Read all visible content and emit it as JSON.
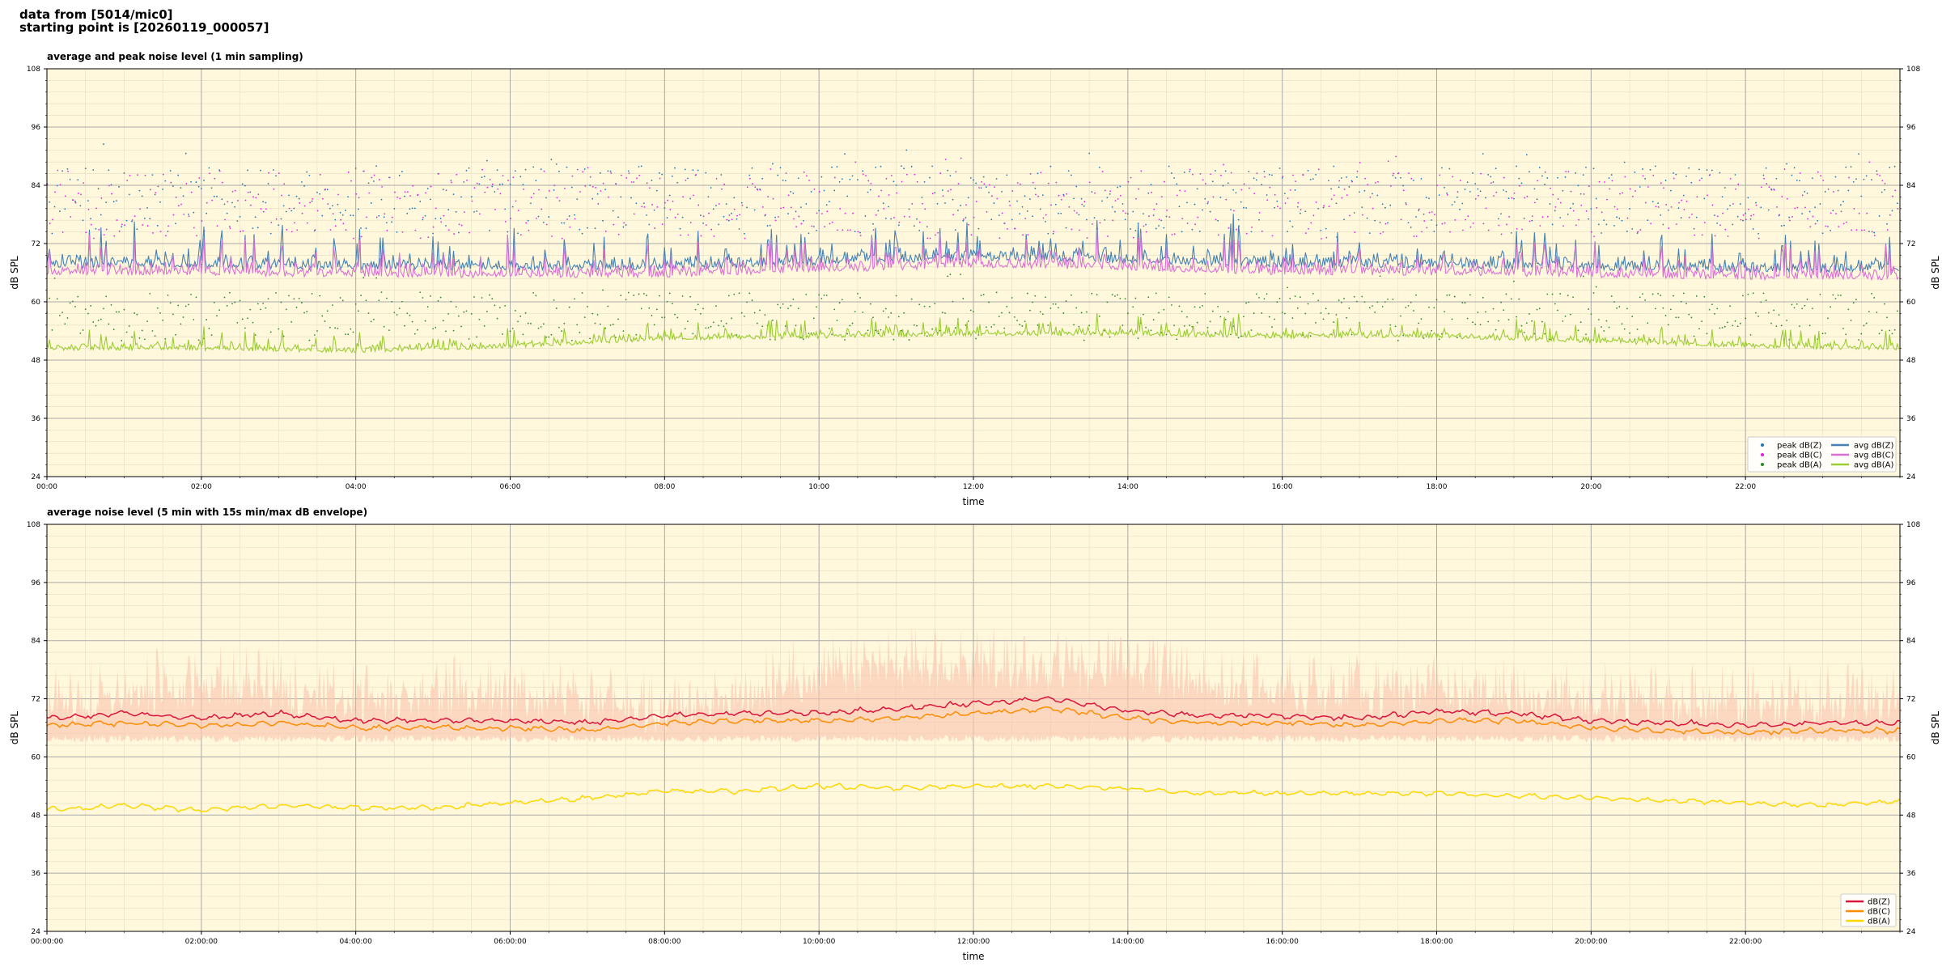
{
  "header": {
    "line1": "data from [5014/mic0]",
    "line2": "starting point is [20260119_000057]"
  },
  "colors": {
    "background": "#fff8dc",
    "peak_z": "#1f77b4",
    "peak_c": "#e023e0",
    "peak_a": "#2a8a2a",
    "avg_z": "#4682b4",
    "avg_c": "#da70d6",
    "avg_a": "#9acd32",
    "env": "#fbc6b0",
    "db_z": "#dc143c",
    "db_c": "#ff8c00",
    "db_a": "#ffd700"
  },
  "chart_data": [
    {
      "type": "line",
      "title": "average and peak noise level (1 min sampling)",
      "xlabel": "time",
      "ylabel": "dB SPL",
      "xlim_hours": [
        0,
        24
      ],
      "ylim": [
        24,
        108
      ],
      "yticks": [
        24,
        36,
        48,
        60,
        72,
        84,
        96,
        108
      ],
      "xtick_labels": [
        "00:00",
        "02:00",
        "04:00",
        "06:00",
        "08:00",
        "10:00",
        "12:00",
        "14:00",
        "16:00",
        "18:00",
        "20:00",
        "22:00"
      ],
      "grid": true,
      "legend_position": "lower-right",
      "legend": [
        "peak dB(Z)",
        "peak dB(C)",
        "peak dB(A)",
        "avg dB(Z)",
        "avg dB(C)",
        "avg dB(A)"
      ],
      "series_summary": [
        {
          "name": "avg dB(Z)",
          "typical_level": 68,
          "range": [
            64,
            80
          ]
        },
        {
          "name": "avg dB(C)",
          "typical_level": 66.5,
          "range": [
            63,
            78
          ]
        },
        {
          "name": "avg dB(A)",
          "typical_level": 51,
          "range": [
            48,
            61
          ]
        },
        {
          "name": "peak dB(Z)",
          "typical_level": 80,
          "range": [
            60,
            93
          ]
        },
        {
          "name": "peak dB(C)",
          "typical_level": 79,
          "range": [
            60,
            92
          ]
        },
        {
          "name": "peak dB(A)",
          "typical_level": 58,
          "range": [
            50,
            73
          ]
        }
      ]
    },
    {
      "type": "line",
      "title": "average noise level (5 min with 15s min/max dB envelope)",
      "xlabel": "time",
      "ylabel": "dB SPL",
      "xlim_hours": [
        0,
        24
      ],
      "ylim": [
        24,
        108
      ],
      "yticks": [
        24,
        36,
        48,
        60,
        72,
        84,
        96,
        108
      ],
      "xtick_labels": [
        "00:00:00",
        "02:00:00",
        "04:00:00",
        "06:00:00",
        "08:00:00",
        "10:00:00",
        "12:00:00",
        "14:00:00",
        "16:00:00",
        "18:00:00",
        "20:00:00",
        "22:00:00"
      ],
      "grid": true,
      "legend_position": "lower-right",
      "legend": [
        "dB(Z)",
        "dB(C)",
        "dB(A)"
      ],
      "series": [
        {
          "name": "dB(Z)",
          "hours": [
            0,
            1,
            2,
            3,
            4,
            5,
            6,
            7,
            8,
            9,
            10,
            11,
            12,
            13,
            14,
            15,
            16,
            17,
            18,
            19,
            20,
            21,
            22,
            23,
            24
          ],
          "values": [
            68,
            69,
            68,
            69,
            67.5,
            67.5,
            67.5,
            67,
            68.5,
            69,
            69,
            70,
            71,
            72,
            69.5,
            68.5,
            68.5,
            68,
            69.5,
            69,
            67.5,
            67,
            66.5,
            67,
            67
          ]
        },
        {
          "name": "dB(C)",
          "hours": [
            0,
            1,
            2,
            3,
            4,
            5,
            6,
            7,
            8,
            9,
            10,
            11,
            12,
            13,
            14,
            15,
            16,
            17,
            18,
            19,
            20,
            21,
            22,
            23,
            24
          ],
          "values": [
            66.5,
            67,
            66.5,
            67,
            66,
            66,
            66,
            65.5,
            67,
            67.5,
            67.5,
            68,
            69,
            70,
            68,
            67,
            67,
            66.5,
            67.5,
            67.5,
            66,
            65.5,
            65,
            65.5,
            65.5
          ]
        },
        {
          "name": "dB(A)",
          "hours": [
            0,
            1,
            2,
            3,
            4,
            5,
            6,
            7,
            8,
            9,
            10,
            11,
            12,
            13,
            14,
            15,
            16,
            17,
            18,
            19,
            20,
            21,
            22,
            23,
            24
          ],
          "values": [
            49,
            50,
            49,
            50,
            49.5,
            49.5,
            50.5,
            51.5,
            53,
            53,
            54,
            53.5,
            54,
            54,
            53.5,
            52.5,
            52.5,
            52.5,
            52.5,
            52,
            51.5,
            51,
            50.5,
            50,
            51
          ]
        },
        {
          "name": "envelope max",
          "hours": [
            0,
            2,
            4,
            6,
            8,
            10,
            12,
            14,
            16,
            18,
            20,
            22,
            24
          ],
          "values": [
            80,
            84,
            81,
            82,
            78,
            86,
            88,
            86,
            82,
            82,
            80,
            80,
            80
          ]
        },
        {
          "name": "envelope min",
          "hours": [
            0,
            2,
            4,
            6,
            8,
            10,
            12,
            14,
            16,
            18,
            20,
            22,
            24
          ],
          "values": [
            63,
            63,
            63,
            63,
            63,
            63,
            63,
            63,
            63,
            63,
            63,
            63,
            63
          ]
        }
      ]
    }
  ]
}
